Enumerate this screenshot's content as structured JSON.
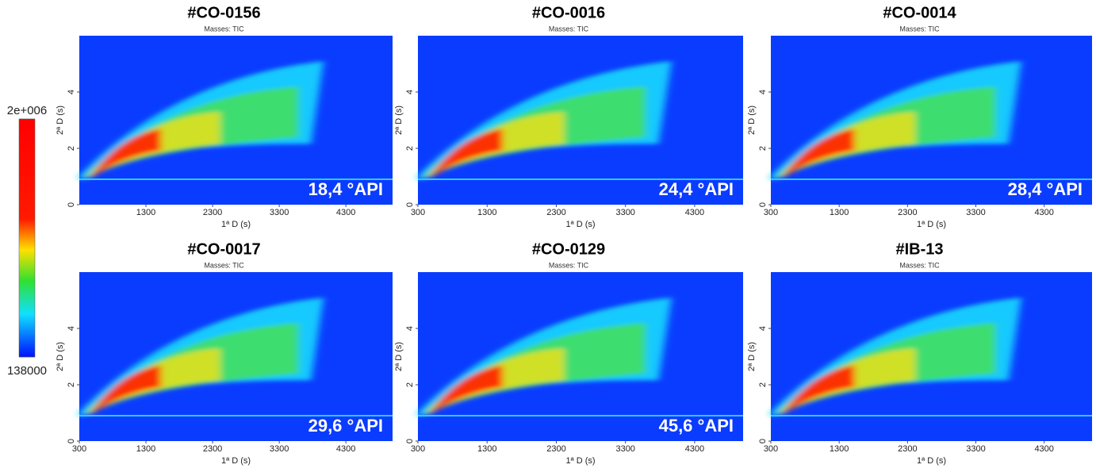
{
  "colorbar": {
    "ticks": [
      {
        "value": 2000000,
        "label": "2e+006"
      },
      138000
    ]
  },
  "chart_data": [
    {
      "type": "heatmap",
      "title": "#CO-0156",
      "subtitle": "Masses: TIC",
      "xlabel": "1ª D (s)",
      "ylabel": "2ª D (s)",
      "xlim": [
        300,
        5000
      ],
      "xticks": [
        1300,
        2300,
        3300,
        4300
      ],
      "ylim": [
        0,
        6
      ],
      "yticks": [
        0,
        2,
        4
      ],
      "annotation": "18,4 °API"
    },
    {
      "type": "heatmap",
      "title": "#CO-0016",
      "subtitle": "Masses: TIC",
      "xlabel": "1ª D (s)",
      "ylabel": "2ª D (s)",
      "xlim": [
        300,
        5000
      ],
      "xticks": [
        300,
        1300,
        2300,
        3300,
        4300
      ],
      "ylim": [
        0,
        6
      ],
      "yticks": [
        0,
        2,
        4
      ],
      "annotation": "24,4 °API"
    },
    {
      "type": "heatmap",
      "title": "#CO-0014",
      "subtitle": "Masses: TIC",
      "xlabel": "1ª D (s)",
      "ylabel": "2ª D (s)",
      "xlim": [
        300,
        5000
      ],
      "xticks": [
        300,
        1300,
        2300,
        3300,
        4300
      ],
      "ylim": [
        0,
        6
      ],
      "yticks": [
        0,
        2,
        4
      ],
      "annotation": "28,4 °API"
    },
    {
      "type": "heatmap",
      "title": "#CO-0017",
      "subtitle": "Masses: TIC",
      "xlabel": "1ª D (s)",
      "ylabel": "2ª D (s)",
      "xlim": [
        300,
        5000
      ],
      "xticks": [
        300,
        1300,
        2300,
        3300,
        4300
      ],
      "ylim": [
        0,
        6
      ],
      "yticks": [
        0,
        2,
        4
      ],
      "annotation": "29,6 °API"
    },
    {
      "type": "heatmap",
      "title": "#CO-0129",
      "subtitle": "Masses: TIC",
      "xlabel": "1ª D (s)",
      "ylabel": "2ª D (s)",
      "xlim": [
        300,
        5000
      ],
      "xticks": [
        300,
        1300,
        2300,
        3300,
        4300
      ],
      "ylim": [
        0,
        6
      ],
      "yticks": [
        0,
        2,
        4
      ],
      "annotation": "45,6 °API"
    },
    {
      "type": "heatmap",
      "title": "#IB-13",
      "subtitle": "Masses: TIC",
      "xlabel": "1ª D (s)",
      "ylabel": "2ª D (s)",
      "xlim": [
        300,
        5000
      ],
      "xticks": [
        300,
        1300,
        2300,
        3300,
        4300
      ],
      "ylim": [
        0,
        6
      ],
      "yticks": [
        0,
        2,
        4
      ]
    }
  ]
}
